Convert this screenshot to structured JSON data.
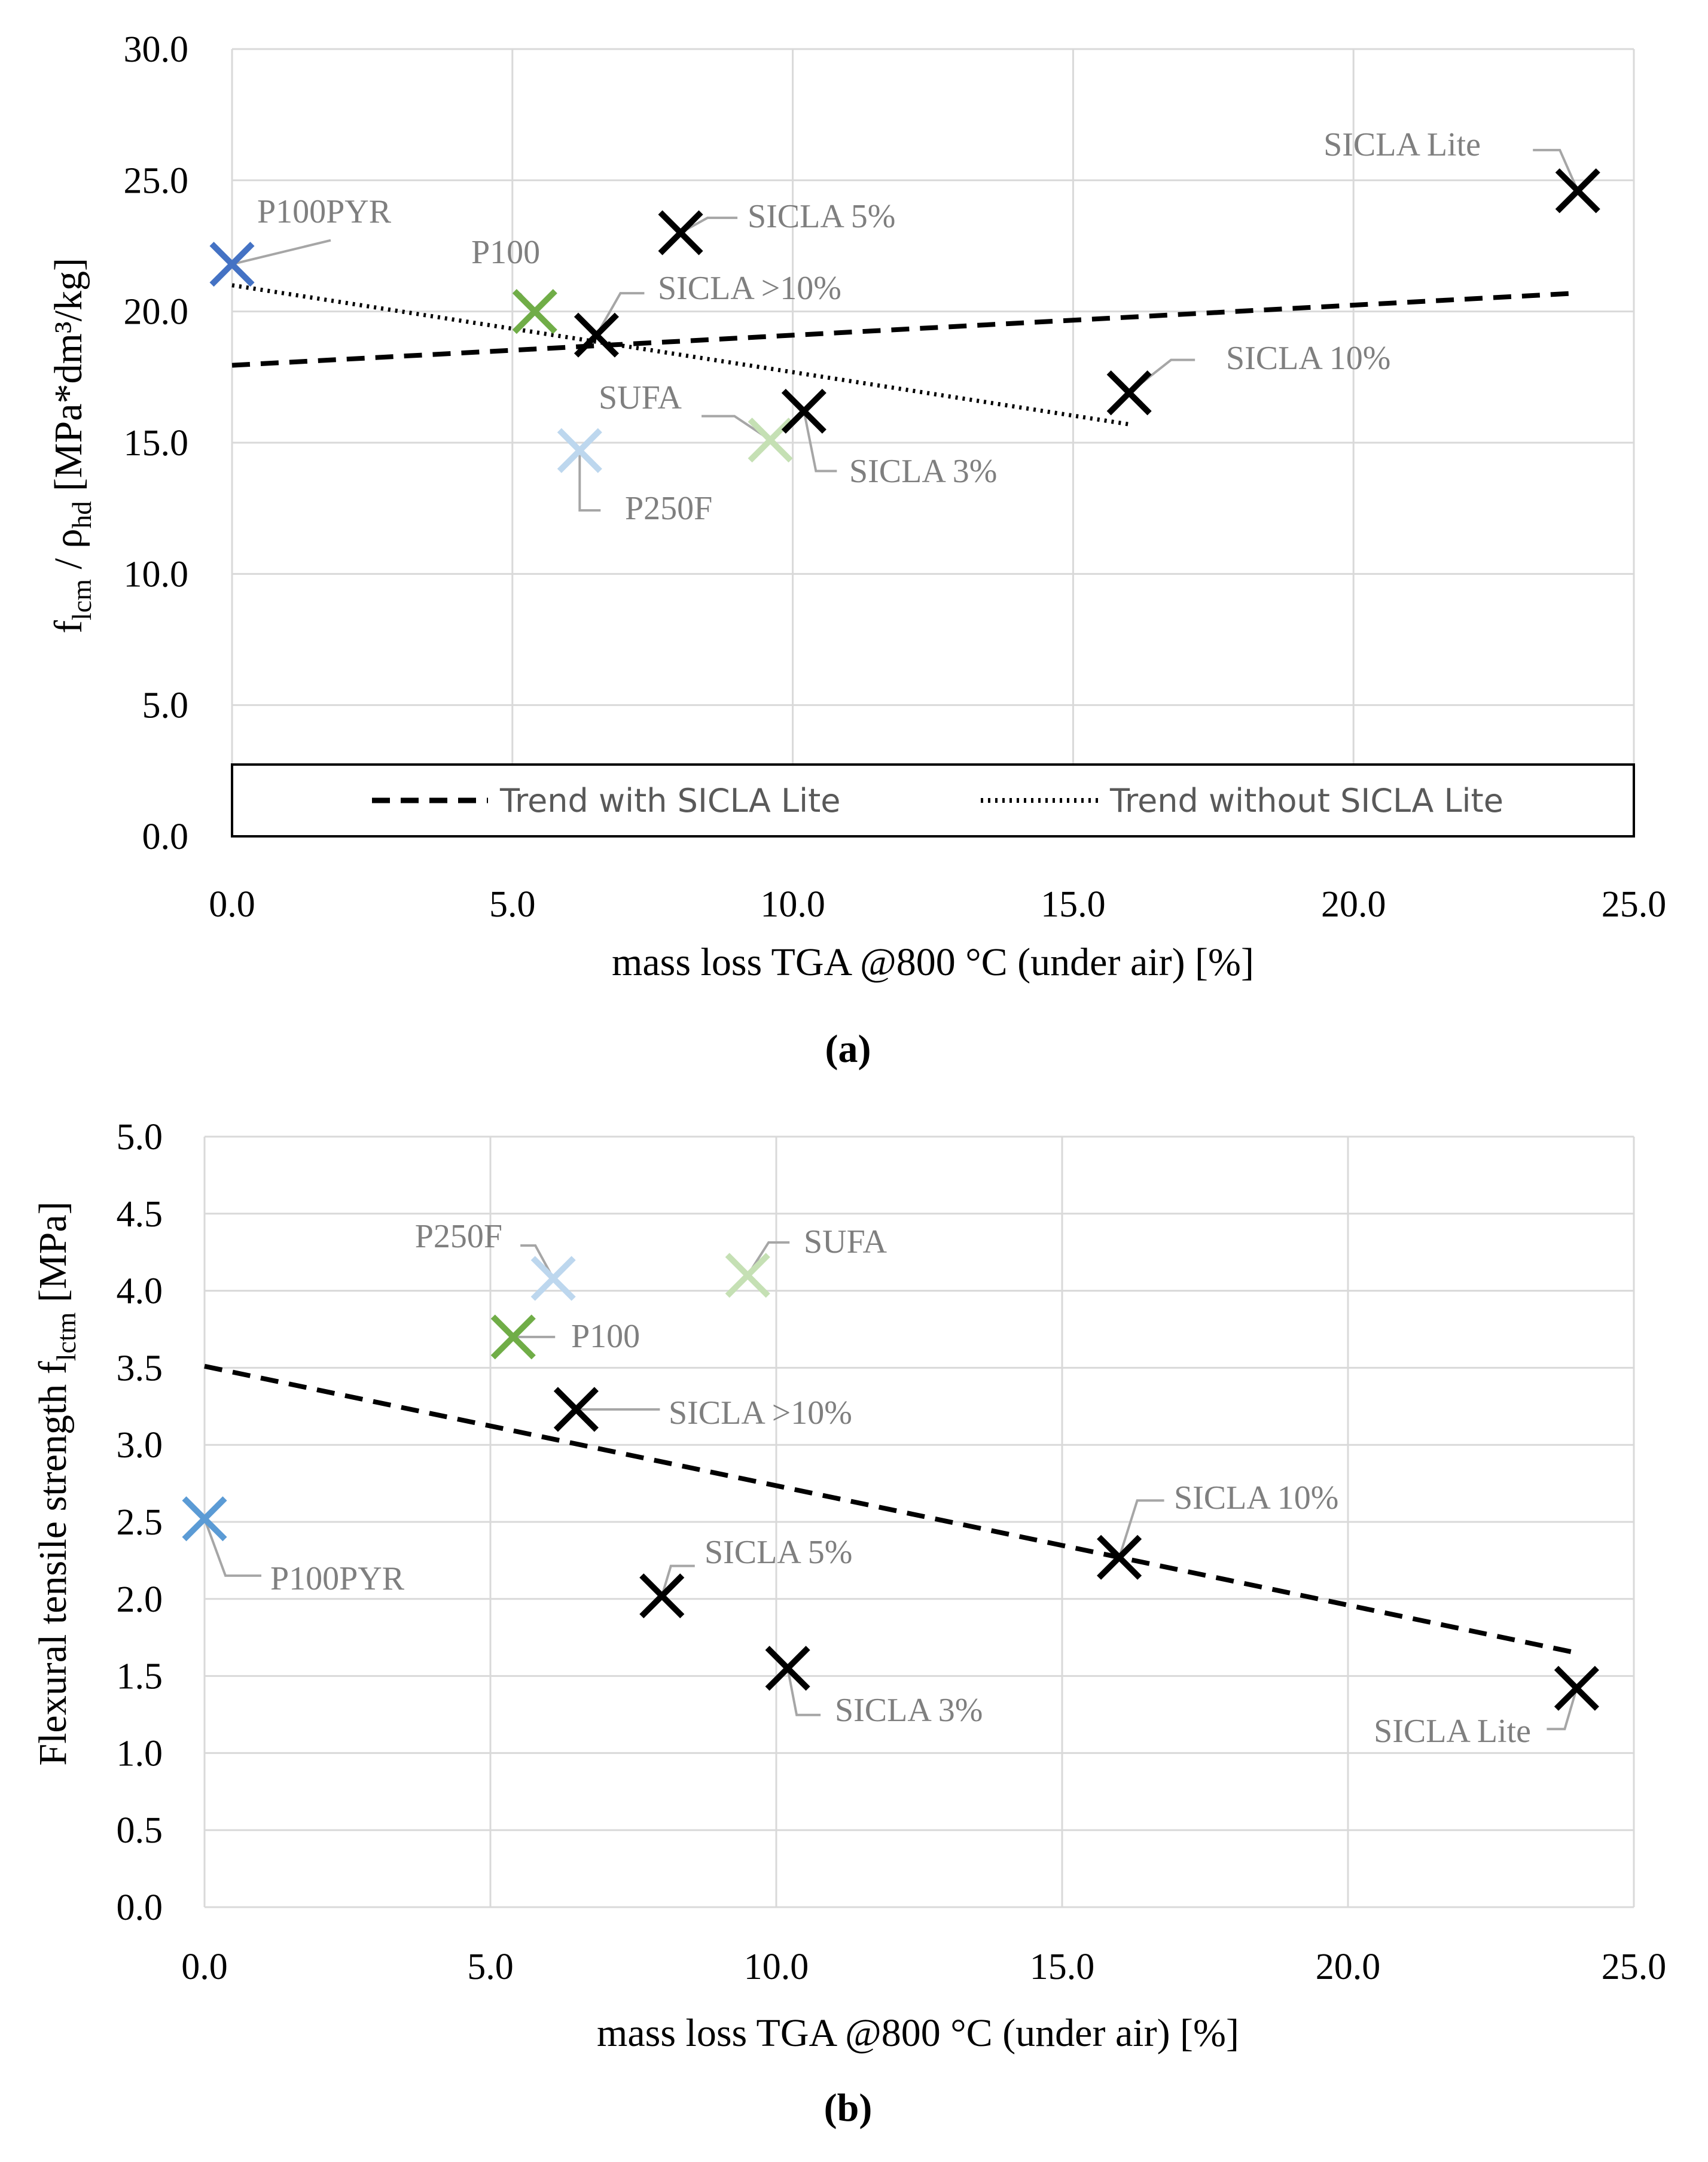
{
  "panels": [
    {
      "id": "a",
      "panel_label": "(a)",
      "chart_data": {
        "type": "scatter",
        "title": "",
        "xlabel": "mass loss TGA @800 °C (under air) [%]",
        "ylabel_main": "f",
        "ylabel_sub1": "lcm",
        "ylabel_mid": " / ρ",
        "ylabel_sub2": "hd",
        "ylabel_rest": " [MPa*dm³/kg]",
        "xlim": [
          0,
          25
        ],
        "ylim": [
          0,
          30
        ],
        "xticks": [
          0,
          5,
          10,
          15,
          20,
          25
        ],
        "yticks": [
          0,
          5,
          10,
          15,
          20,
          25,
          30
        ],
        "grid": true,
        "points": [
          {
            "name": "P100PYR",
            "x": 0.0,
            "y": 21.8,
            "color": "#4472c4"
          },
          {
            "name": "P100",
            "x": 5.4,
            "y": 20.0,
            "color": "#70ad47"
          },
          {
            "name": "SICLA >10%",
            "x": 6.5,
            "y": 19.1,
            "color": "#000000"
          },
          {
            "name": "SICLA 5%",
            "x": 8.0,
            "y": 23.0,
            "color": "#000000"
          },
          {
            "name": "P250F",
            "x": 6.2,
            "y": 14.7,
            "color": "#bdd7ee"
          },
          {
            "name": "SUFA",
            "x": 9.6,
            "y": 15.1,
            "color": "#c5e0b4"
          },
          {
            "name": "SICLA 3%",
            "x": 10.2,
            "y": 16.2,
            "color": "#000000"
          },
          {
            "name": "SICLA 10%",
            "x": 16.0,
            "y": 16.9,
            "color": "#000000"
          },
          {
            "name": "SICLA Lite",
            "x": 24.0,
            "y": 24.6,
            "color": "#000000"
          }
        ],
        "trendlines": [
          {
            "name": "Trend with SICLA Lite",
            "style": "dashed",
            "x": [
              0,
              24
            ],
            "y": [
              17.95,
              20.7
            ]
          },
          {
            "name": "Trend without SICLA Lite",
            "style": "dotted",
            "x": [
              0,
              16
            ],
            "y": [
              21.0,
              15.7
            ]
          }
        ],
        "legend": [
          "Trend with SICLA Lite",
          "Trend without SICLA Lite"
        ],
        "legend_position": "bottom-inside"
      }
    },
    {
      "id": "b",
      "panel_label": "(b)",
      "chart_data": {
        "type": "scatter",
        "title": "",
        "xlabel": "mass loss TGA @800 °C (under air) [%]",
        "ylabel_main": "Flexural tensile strength f",
        "ylabel_sub1": "lctm",
        "ylabel_rest": " [MPa]",
        "xlim": [
          0,
          25
        ],
        "ylim": [
          0,
          5
        ],
        "xticks": [
          0,
          5,
          10,
          15,
          20,
          25
        ],
        "yticks": [
          0,
          0.5,
          1.0,
          1.5,
          2.0,
          2.5,
          3.0,
          3.5,
          4.0,
          4.5,
          5.0
        ],
        "grid": true,
        "points": [
          {
            "name": "P100PYR",
            "x": 0.0,
            "y": 2.52,
            "color": "#5b9bd5"
          },
          {
            "name": "P250F",
            "x": 6.1,
            "y": 4.08,
            "color": "#bdd7ee"
          },
          {
            "name": "SUFA",
            "x": 9.5,
            "y": 4.1,
            "color": "#c5e0b4"
          },
          {
            "name": "P100",
            "x": 5.4,
            "y": 3.7,
            "color": "#70ad47"
          },
          {
            "name": "SICLA >10%",
            "x": 6.5,
            "y": 3.23,
            "color": "#000000"
          },
          {
            "name": "SICLA 5%",
            "x": 8.0,
            "y": 2.02,
            "color": "#000000"
          },
          {
            "name": "SICLA 3%",
            "x": 10.2,
            "y": 1.55,
            "color": "#000000"
          },
          {
            "name": "SICLA 10%",
            "x": 16.0,
            "y": 2.27,
            "color": "#000000"
          },
          {
            "name": "SICLA Lite",
            "x": 24.0,
            "y": 1.42,
            "color": "#000000"
          }
        ],
        "trendlines": [
          {
            "name": "Trend",
            "style": "dashed",
            "x": [
              0,
              24
            ],
            "y": [
              3.51,
              1.65
            ]
          }
        ]
      }
    }
  ]
}
